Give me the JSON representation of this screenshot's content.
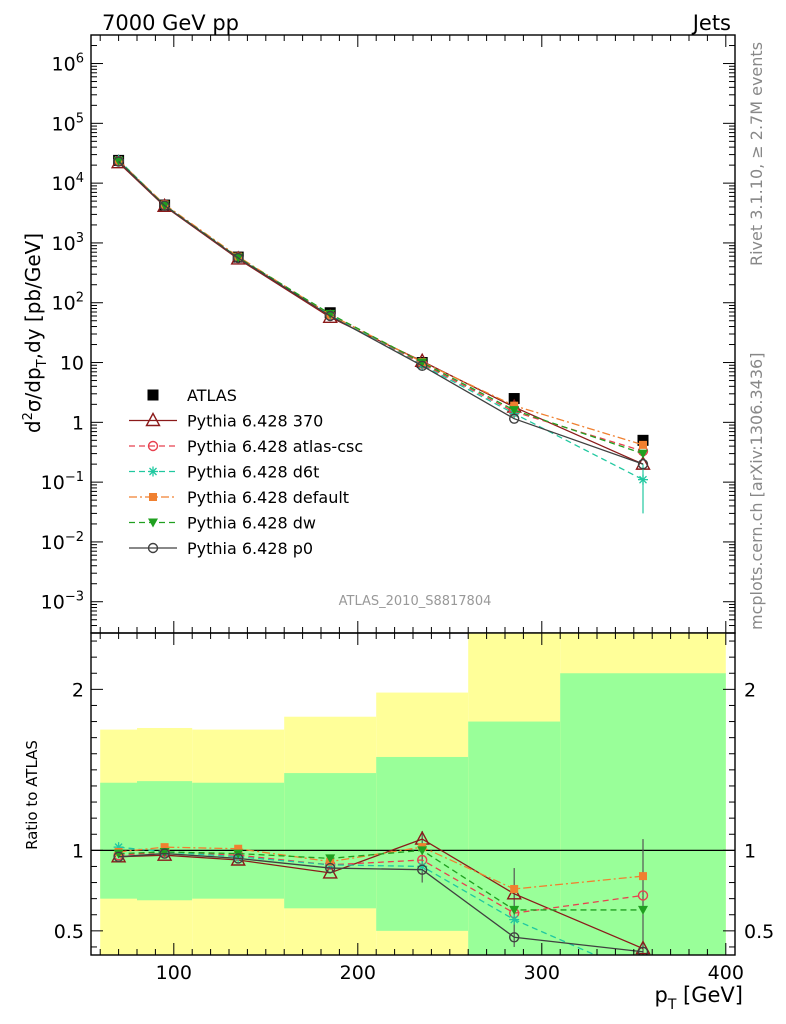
{
  "header": {
    "left": "7000 GeV pp",
    "right": "Jets"
  },
  "side_labels": {
    "rivet": "Rivet 3.1.10, ≥ 2.7M events",
    "mcplots": "mcplots.cern.ch [arXiv:1306.3436]"
  },
  "analysis_id": "ATLAS_2010_S8817804",
  "colors": {
    "ATLAS": "#000000",
    "Pythia 6.428 370": "#8b1a1a",
    "Pythia 6.428 atlas-csc": "#e8404f",
    "Pythia 6.428 d6t": "#20c8a0",
    "Pythia 6.428 default": "#f08030",
    "Pythia 6.428 dw": "#20a020",
    "Pythia 6.428 p0": "#404040",
    "band_inner": "#99ff99",
    "band_outer": "#ffff99"
  },
  "chart_data": [
    {
      "type": "line",
      "panel": "main",
      "ylabel_parts": {
        "main": "d",
        "sup2": "2",
        "sigma": "σ/dp",
        "subT": "T",
        "rest": ",dy [pb/GeV]"
      },
      "yscale": "log",
      "xlim": [
        55,
        405
      ],
      "ylim": [
        0.0003,
        3000000
      ],
      "yticks": [
        {
          "v": 1000000,
          "base": "10",
          "exp": "6"
        },
        {
          "v": 100000,
          "base": "10",
          "exp": "5"
        },
        {
          "v": 10000,
          "base": "10",
          "exp": "4"
        },
        {
          "v": 1000,
          "base": "10",
          "exp": "3"
        },
        {
          "v": 100,
          "base": "10",
          "exp": "2"
        },
        {
          "v": 10,
          "base": "10",
          "exp": ""
        },
        {
          "v": 1,
          "base": "1",
          "exp": ""
        },
        {
          "v": 0.1,
          "base": "10",
          "exp": "−1"
        },
        {
          "v": 0.01,
          "base": "10",
          "exp": "−2"
        },
        {
          "v": 0.001,
          "base": "10",
          "exp": "−3"
        }
      ],
      "x": [
        70,
        95,
        135,
        185,
        235,
        285,
        355
      ],
      "series": [
        {
          "name": "ATLAS",
          "style": "data",
          "marker": "square",
          "values": [
            24000,
            4300,
            580,
            68,
            10,
            2.5,
            0.5
          ]
        },
        {
          "name": "Pythia 6.428 370",
          "style": "solid",
          "marker": "triangle",
          "values": [
            22000,
            4100,
            540,
            57,
            10.5,
            1.8,
            0.2
          ]
        },
        {
          "name": "Pythia 6.428 atlas-csc",
          "style": "dashed",
          "marker": "circle-open",
          "values": [
            23500,
            4300,
            560,
            62,
            9.5,
            1.5,
            0.33
          ]
        },
        {
          "name": "Pythia 6.428 d6t",
          "style": "dashed",
          "marker": "star",
          "values": [
            24500,
            4250,
            560,
            62,
            9.0,
            1.4,
            0.11
          ],
          "last_err": [
            0.03,
            0.2
          ]
        },
        {
          "name": "Pythia 6.428 default",
          "style": "dashdot",
          "marker": "square-small",
          "values": [
            23800,
            4400,
            590,
            63,
            10.2,
            1.9,
            0.42
          ]
        },
        {
          "name": "Pythia 6.428 dw",
          "style": "dashed",
          "marker": "triangle-down",
          "values": [
            23600,
            4250,
            570,
            65,
            10.0,
            1.6,
            0.3
          ]
        },
        {
          "name": "Pythia 6.428 p0",
          "style": "solid",
          "marker": "circle-open",
          "values": [
            23000,
            4200,
            560,
            60,
            8.8,
            1.15,
            0.2
          ]
        }
      ]
    },
    {
      "type": "line",
      "panel": "ratio",
      "ylabel": "Ratio to ATLAS",
      "xlabel_main": "p",
      "xlabel_sub": "T",
      "xlabel_rest": " [GeV]",
      "xlim": [
        55,
        405
      ],
      "ylim": [
        0.35,
        2.35
      ],
      "yticks": [
        0.5,
        1,
        2
      ],
      "yticklabels": [
        "0.5",
        "1",
        "2"
      ],
      "xticks": [
        100,
        200,
        300,
        400
      ],
      "xticklabels": [
        "100",
        "200",
        "300",
        "400"
      ],
      "bands": [
        {
          "x0": 60,
          "x1": 80,
          "inner": [
            0.7,
            1.42
          ],
          "outer": [
            0.35,
            1.75
          ]
        },
        {
          "x0": 80,
          "x1": 110,
          "inner": [
            0.69,
            1.43
          ],
          "outer": [
            0.35,
            1.76
          ]
        },
        {
          "x0": 110,
          "x1": 160,
          "inner": [
            0.7,
            1.42
          ],
          "outer": [
            0.35,
            1.75
          ]
        },
        {
          "x0": 160,
          "x1": 210,
          "inner": [
            0.64,
            1.48
          ],
          "outer": [
            0.35,
            1.83
          ]
        },
        {
          "x0": 210,
          "x1": 260,
          "inner": [
            0.5,
            1.58
          ],
          "outer": [
            0.35,
            1.98
          ]
        },
        {
          "x0": 260,
          "x1": 310,
          "inner": [
            0.35,
            1.8
          ],
          "outer": [
            0.35,
            2.35
          ]
        },
        {
          "x0": 310,
          "x1": 400,
          "inner": [
            0.35,
            2.1
          ],
          "outer": [
            0.35,
            2.35
          ]
        }
      ],
      "x": [
        70,
        95,
        135,
        185,
        235,
        285,
        355
      ],
      "series": [
        {
          "name": "Pythia 6.428 370",
          "values": [
            0.96,
            0.97,
            0.94,
            0.86,
            1.07,
            0.73,
            0.39
          ]
        },
        {
          "name": "Pythia 6.428 atlas-csc",
          "values": [
            0.97,
            0.99,
            0.97,
            0.91,
            0.94,
            0.61,
            0.72
          ]
        },
        {
          "name": "Pythia 6.428 d6t",
          "values": [
            1.02,
            0.99,
            0.96,
            0.91,
            0.9,
            0.57,
            0.22
          ]
        },
        {
          "name": "Pythia 6.428 default",
          "values": [
            0.99,
            1.02,
            1.01,
            0.93,
            1.02,
            0.76,
            0.84
          ]
        },
        {
          "name": "Pythia 6.428 dw",
          "values": [
            0.98,
            0.99,
            0.98,
            0.95,
            1.0,
            0.63,
            0.63
          ]
        },
        {
          "name": "Pythia 6.428 p0",
          "values": [
            0.96,
            0.98,
            0.95,
            0.89,
            0.88,
            0.46,
            0.37
          ]
        }
      ],
      "errors": [
        {
          "x": 235,
          "lo": 0.8,
          "hi": 1.12
        },
        {
          "x": 285,
          "lo": 0.4,
          "hi": 0.89
        },
        {
          "x": 355,
          "lo": 0.35,
          "hi": 1.07
        }
      ]
    }
  ]
}
